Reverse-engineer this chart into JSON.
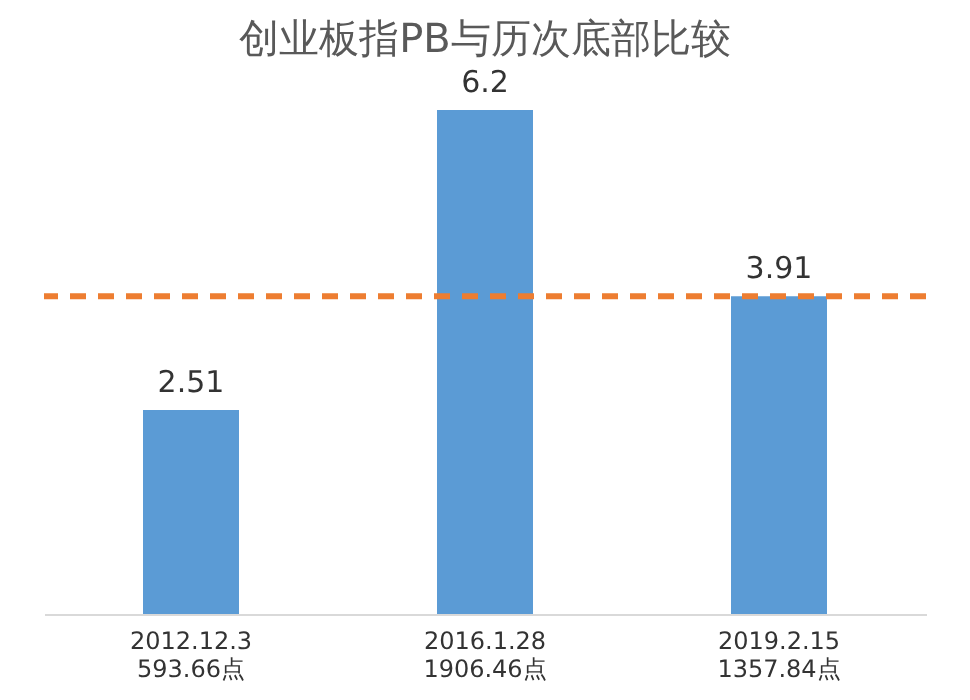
{
  "chart_data": {
    "type": "bar",
    "title": "创业板指PB与历次底部比较",
    "categories": [
      "2012.12.3\n593.66点",
      "2016.1.28\n1906.46点",
      "2019.2.15\n1357.84点"
    ],
    "values": [
      2.51,
      6.2,
      3.91
    ],
    "color": "#5b9bd5",
    "data_labels": true,
    "grid": false,
    "ref_lines": [
      {
        "axis": "y",
        "value": 3.91,
        "color": "#ed7d31",
        "line_style": "dashed"
      }
    ]
  }
}
